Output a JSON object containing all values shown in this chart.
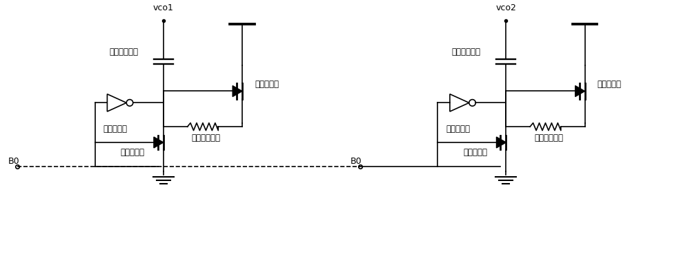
{
  "bg_color": "#ffffff",
  "line_color": "#000000",
  "text_color": "#000000",
  "labels": {
    "vco1": "vco1",
    "vco2": "vco2",
    "cap1": "第一权位电容",
    "cap2": "第二权位电容",
    "inv1": "第一反相器",
    "inv2": "第二反相器",
    "tr1": "第一晶体管",
    "tr2": "第二晶体管",
    "tr3": "第三晶体管",
    "tr4": "第四晶体管",
    "res1": "第一负载电阻",
    "res2": "第二负载电阻",
    "b0": "B0"
  },
  "figsize": [
    10.0,
    4.04
  ],
  "dpi": 100
}
